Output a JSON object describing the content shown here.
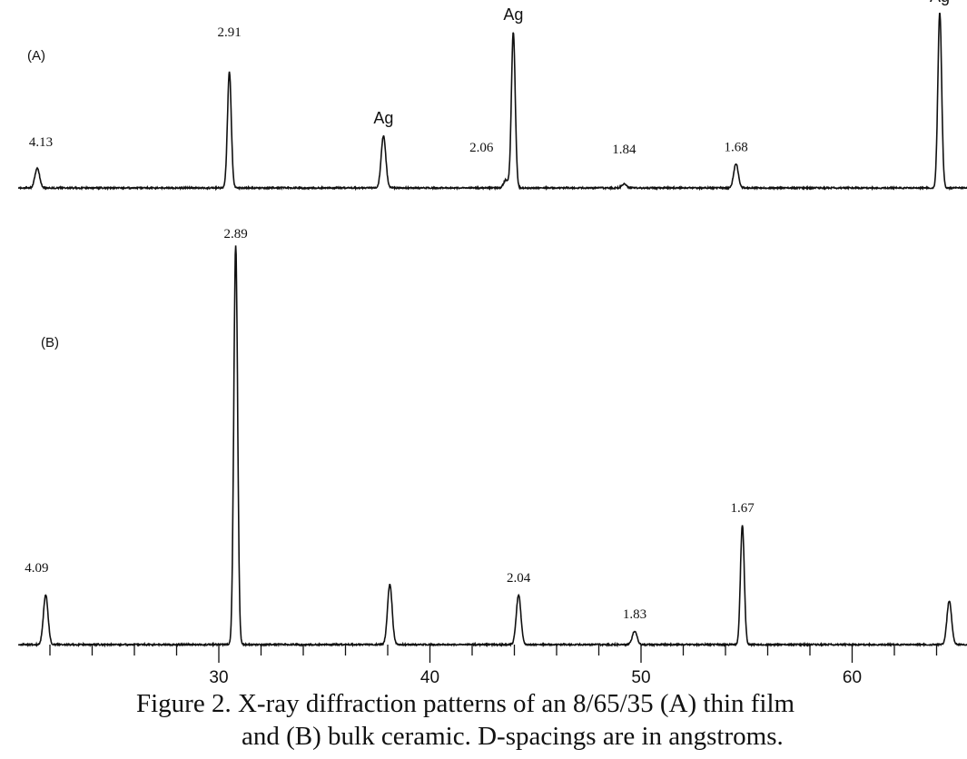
{
  "chart_data": [
    {
      "type": "line",
      "panel_label": "(A)",
      "xlim": [
        20.5,
        65.5
      ],
      "baseline": 0,
      "intensity_scale": "arbitrary",
      "peaks": [
        {
          "two_theta": 21.4,
          "intensity": 5,
          "label": "4.13"
        },
        {
          "two_theta": 30.5,
          "intensity": 29,
          "label": "2.91"
        },
        {
          "two_theta": 37.8,
          "intensity": 13,
          "label": "Ag"
        },
        {
          "two_theta": 43.6,
          "intensity": 2,
          "label": "2.06"
        },
        {
          "two_theta": 43.95,
          "intensity": 39,
          "label": "Ag"
        },
        {
          "two_theta": 49.2,
          "intensity": 1,
          "label": "1.84"
        },
        {
          "two_theta": 54.5,
          "intensity": 6,
          "label": "1.68"
        },
        {
          "two_theta": 64.15,
          "intensity": 44,
          "label": "Ag"
        }
      ]
    },
    {
      "type": "line",
      "panel_label": "(B)",
      "xlim": [
        20.5,
        65.5
      ],
      "baseline": 0,
      "intensity_scale": "arbitrary",
      "peaks": [
        {
          "two_theta": 21.8,
          "intensity": 12.5,
          "label": "4.09"
        },
        {
          "two_theta": 30.8,
          "intensity": 100,
          "label": "2.89"
        },
        {
          "two_theta": 38.1,
          "intensity": 15,
          "label": ""
        },
        {
          "two_theta": 44.2,
          "intensity": 12.5,
          "label": "2.04"
        },
        {
          "two_theta": 49.7,
          "intensity": 3.4,
          "label": "1.83"
        },
        {
          "two_theta": 54.8,
          "intensity": 30,
          "label": "1.67"
        },
        {
          "two_theta": 64.6,
          "intensity": 11,
          "label": ""
        }
      ],
      "x_ticks_major": [
        30,
        40,
        50,
        60
      ],
      "x_ticks_minor_step": 2,
      "x_tick_labels": [
        "30",
        "40",
        "50",
        "60"
      ]
    }
  ],
  "caption": {
    "line1": "Figure 2.  X-ray diffraction patterns of an 8/65/35 (A) thin film",
    "line2": "and (B) bulk ceramic.  D-spacings are in angstroms."
  },
  "colors": {
    "trace": "#111111",
    "background": "#ffffff"
  }
}
